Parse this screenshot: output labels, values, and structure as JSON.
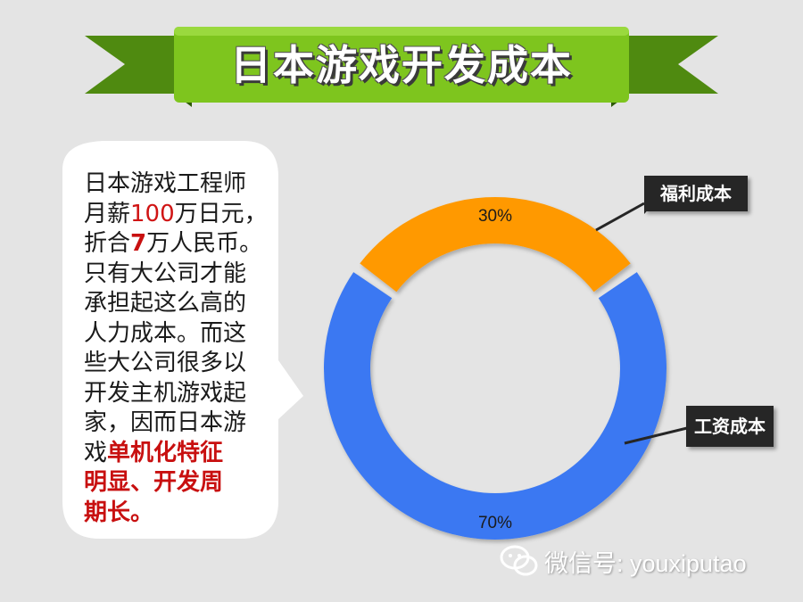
{
  "header": {
    "title": "日本游戏开发成本"
  },
  "bubble": {
    "lines": [
      [
        {
          "t": "日本游戏工程师",
          "s": "normal"
        }
      ],
      [
        {
          "t": "月薪",
          "s": "normal"
        },
        {
          "t": "100",
          "s": "hl"
        },
        {
          "t": "万日元，",
          "s": "normal"
        }
      ],
      [
        {
          "t": "折合",
          "s": "normal"
        },
        {
          "t": "7",
          "s": "strong"
        },
        {
          "t": "万人民币。",
          "s": "normal"
        }
      ],
      [
        {
          "t": "只有大公司才能",
          "s": "normal"
        }
      ],
      [
        {
          "t": "承担起这么高的",
          "s": "normal"
        }
      ],
      [
        {
          "t": "人力成本。而这",
          "s": "normal"
        }
      ],
      [
        {
          "t": "些大公司很多以",
          "s": "normal"
        }
      ],
      [
        {
          "t": "开发主机游戏起",
          "s": "normal"
        }
      ],
      [
        {
          "t": "家，因而日本游",
          "s": "normal"
        }
      ],
      [
        {
          "t": "戏",
          "s": "normal"
        },
        {
          "t": "单机化特征",
          "s": "strong"
        }
      ],
      [
        {
          "t": "明显、开发周",
          "s": "strong"
        }
      ],
      [
        {
          "t": "期长。",
          "s": "strong"
        }
      ]
    ]
  },
  "chart_data": {
    "type": "pie",
    "title": "",
    "series": [
      {
        "name": "福利成本",
        "value": 30,
        "label": "30%",
        "color": "#ff9900"
      },
      {
        "name": "工资成本",
        "value": 70,
        "label": "70%",
        "color": "#3a78f2"
      }
    ]
  },
  "watermark": {
    "text": "微信号: youxiputao"
  }
}
